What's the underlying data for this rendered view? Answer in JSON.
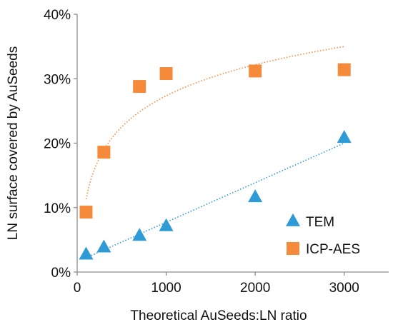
{
  "chart_data": {
    "type": "scatter",
    "xlabel": "Theoretical AuSeeds:LN ratio",
    "ylabel": "LN surface covered by AuSeeds",
    "xlim": [
      0,
      3500
    ],
    "ylim": [
      0,
      40
    ],
    "x_ticks": [
      0,
      1000,
      2000,
      3000
    ],
    "x_tick_labels": [
      "0",
      "1000",
      "2000",
      "3000"
    ],
    "y_ticks": [
      0,
      10,
      20,
      30,
      40
    ],
    "y_tick_labels": [
      "0%",
      "10%",
      "20%",
      "30%",
      "40%"
    ],
    "grid": false,
    "legend_position": "bottom-right",
    "series": [
      {
        "name": "TEM",
        "marker": "triangle",
        "color": "#2E9BD6",
        "x": [
          100,
          300,
          700,
          1000,
          2000,
          3000
        ],
        "y": [
          2.7,
          3.8,
          5.6,
          7.1,
          11.6,
          20.8
        ],
        "trendline": {
          "type": "linear",
          "color": "#2E9BD6",
          "x_range": [
            100,
            3000
          ],
          "y_range": [
            2.2,
            20.0
          ]
        }
      },
      {
        "name": "ICP-AES",
        "marker": "square",
        "color": "#F58A3A",
        "x": [
          100,
          300,
          700,
          1000,
          2000,
          3000
        ],
        "y": [
          9.3,
          18.6,
          28.8,
          30.8,
          31.2,
          31.4
        ],
        "trendline": {
          "type": "logarithmic",
          "color": "#F58A3A",
          "x_range": [
            100,
            3000
          ],
          "y_at_start": 11.3,
          "y_at_end": 35.0
        }
      }
    ]
  }
}
